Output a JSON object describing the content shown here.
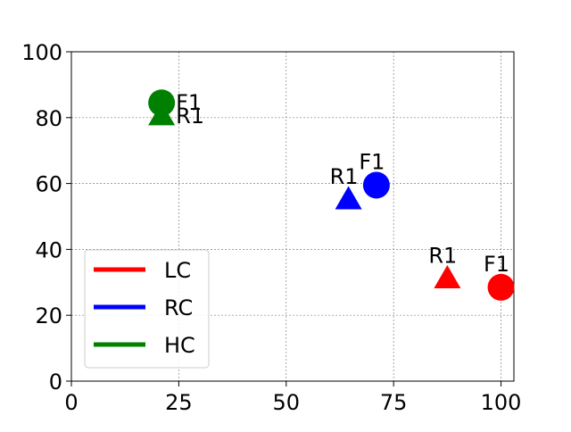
{
  "chart_data": {
    "type": "scatter",
    "title": "",
    "xlabel": "",
    "ylabel": "",
    "xlim": [
      0,
      103
    ],
    "ylim": [
      0,
      100
    ],
    "x_ticks": [
      0,
      25,
      50,
      75,
      100
    ],
    "y_ticks": [
      0,
      20,
      40,
      60,
      80,
      100
    ],
    "x_tick_labels": [
      "0",
      "25",
      "50",
      "75",
      "100"
    ],
    "y_tick_labels": [
      "0",
      "20",
      "40",
      "60",
      "80",
      "100"
    ],
    "grid": true,
    "legend_position": "lower-left",
    "series": [
      {
        "name": "LC",
        "color": "#ff0000",
        "points": [
          {
            "label": "F1",
            "marker": "circle",
            "x": 100,
            "y": 28.5
          },
          {
            "label": "R1",
            "marker": "triangle",
            "x": 87.5,
            "y": 31
          }
        ]
      },
      {
        "name": "RC",
        "color": "#0000ff",
        "points": [
          {
            "label": "F1",
            "marker": "circle",
            "x": 71,
            "y": 59.5
          },
          {
            "label": "R1",
            "marker": "triangle",
            "x": 64.5,
            "y": 55
          }
        ]
      },
      {
        "name": "HC",
        "color": "#008000",
        "points": [
          {
            "label": "F1",
            "marker": "circle",
            "x": 21,
            "y": 84.5
          },
          {
            "label": "R1",
            "marker": "triangle",
            "x": 21,
            "y": 80.5
          }
        ]
      }
    ]
  }
}
